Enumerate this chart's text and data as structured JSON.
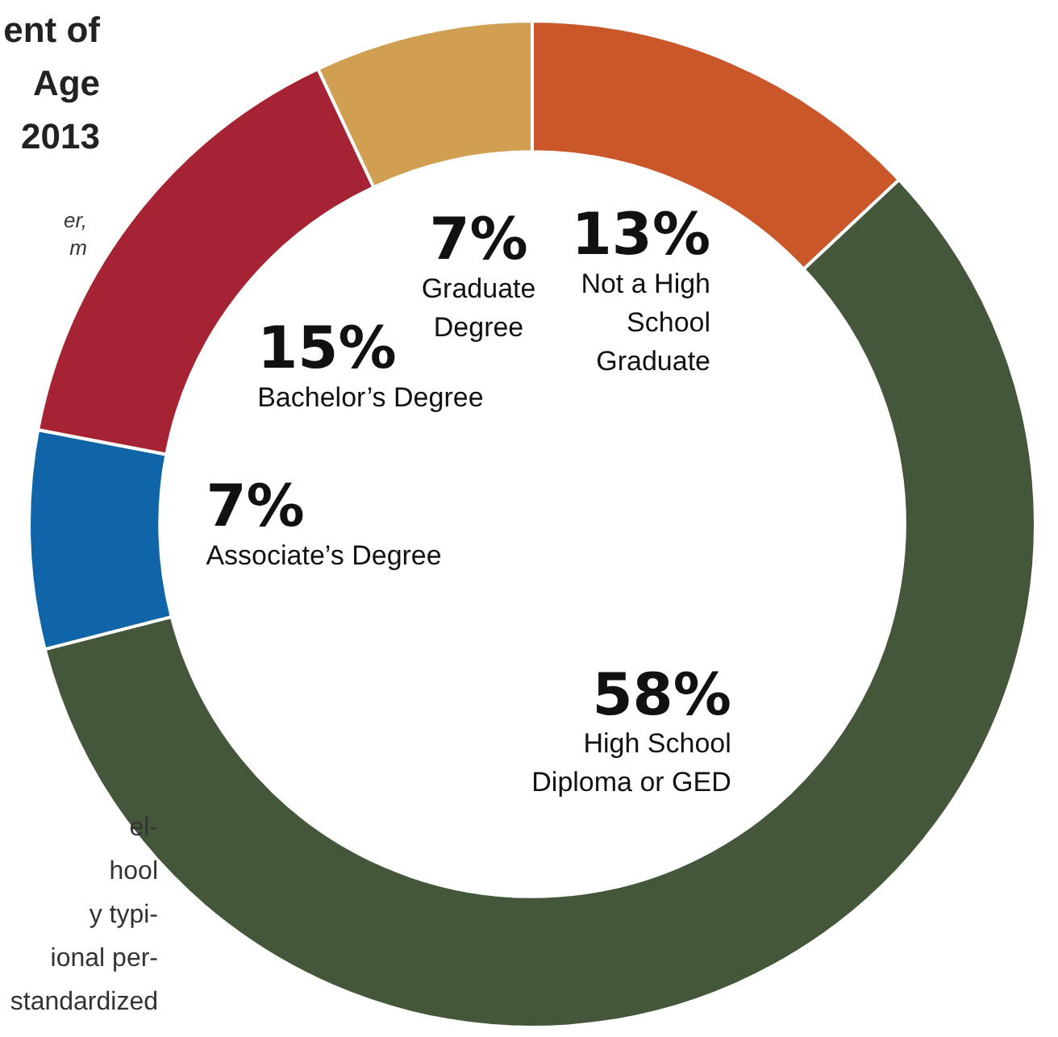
{
  "chart_data": {
    "type": "donut",
    "title": "ent of\nAge\n2013",
    "subtitle": "er,\nm",
    "categories": [
      "Not a High\nSchool\nGraduate",
      "High School\nDiploma or GED",
      "Associate’s Degree",
      "Bachelor’s Degree",
      "Graduate\nDegree"
    ],
    "values": [
      13,
      58,
      7,
      15,
      7
    ],
    "value_labels": [
      "13%",
      "58%",
      "7%",
      "15%",
      "7%"
    ],
    "colors": [
      "#c9572a",
      "#44573a",
      "#1065a8",
      "#a52332",
      "#d09f52"
    ],
    "annotations": [
      "el-\nhool\ny typi-\nional per-\nstandardized"
    ],
    "legend": false
  }
}
